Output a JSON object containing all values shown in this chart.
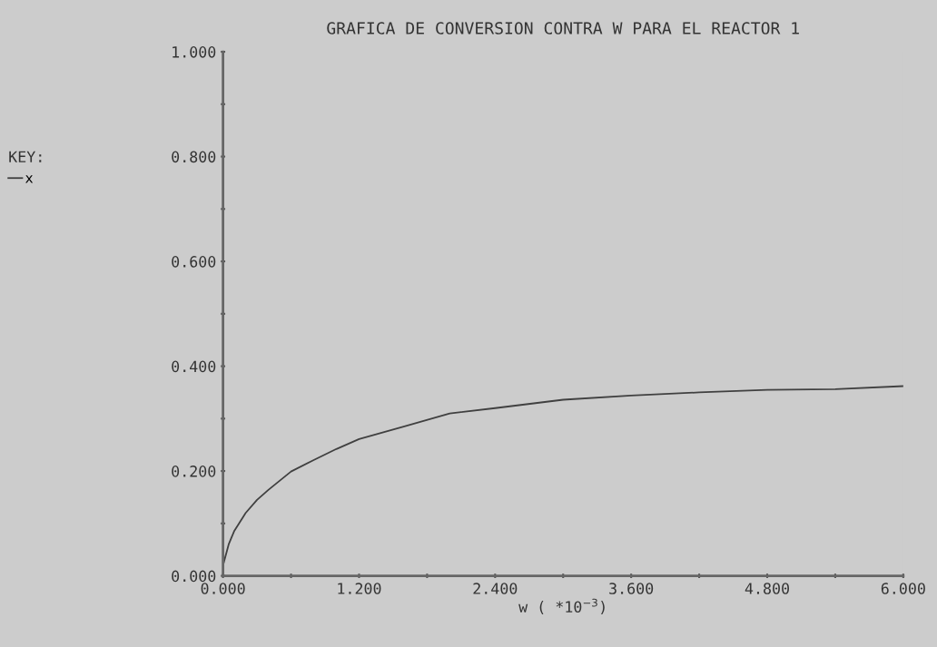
{
  "chart_data": {
    "type": "line",
    "title": "GRAFICA DE CONVERSION CONTRA W PARA EL REACTOR 1",
    "xlabel": "w ( *10$^{−3}$)",
    "legend_title": "KEY:",
    "legend": "left",
    "grid": false,
    "marker": "none",
    "line_style": "solid",
    "x": [
      0,
      0.05,
      0.1,
      0.2,
      0.3,
      0.4,
      0.6,
      0.8,
      1.0,
      1.2,
      1.6,
      2.0,
      2.4,
      3.0,
      3.6,
      4.2,
      4.8,
      5.4,
      6.0
    ],
    "series": [
      {
        "name": "x",
        "color": "#404040",
        "values": [
          0.02,
          0.06,
          0.086,
          0.12,
          0.145,
          0.164,
          0.199,
          0.221,
          0.242,
          0.261,
          0.285,
          0.31,
          0.32,
          0.336,
          0.344,
          0.35,
          0.355,
          0.356,
          0.362
        ]
      }
    ],
    "xlim": [
      0,
      6
    ],
    "ylim": [
      0,
      1
    ],
    "xticks": [
      {
        "value": 0,
        "label": "0.000"
      },
      {
        "value": 0.6,
        "label": null
      },
      {
        "value": 1.2,
        "label": "1.200"
      },
      {
        "value": 1.8,
        "label": null
      },
      {
        "value": 2.4,
        "label": "2.400"
      },
      {
        "value": 3.0,
        "label": null
      },
      {
        "value": 3.6,
        "label": "3.600"
      },
      {
        "value": 4.2,
        "label": null
      },
      {
        "value": 4.8,
        "label": "4.800"
      },
      {
        "value": 5.4,
        "label": null
      },
      {
        "value": 6,
        "label": "6.000"
      }
    ],
    "yticks": [
      {
        "value": 0,
        "label": "0.000"
      },
      {
        "value": 0.1,
        "label": null
      },
      {
        "value": 0.2,
        "label": "0.200"
      },
      {
        "value": 0.3,
        "label": null
      },
      {
        "value": 0.4,
        "label": "0.400"
      },
      {
        "value": 0.5,
        "label": null
      },
      {
        "value": 0.6,
        "label": "0.600"
      },
      {
        "value": 0.7,
        "label": null
      },
      {
        "value": 0.8,
        "label": "0.800"
      },
      {
        "value": 0.9,
        "label": null
      },
      {
        "value": 1,
        "label": "1.000"
      }
    ]
  }
}
